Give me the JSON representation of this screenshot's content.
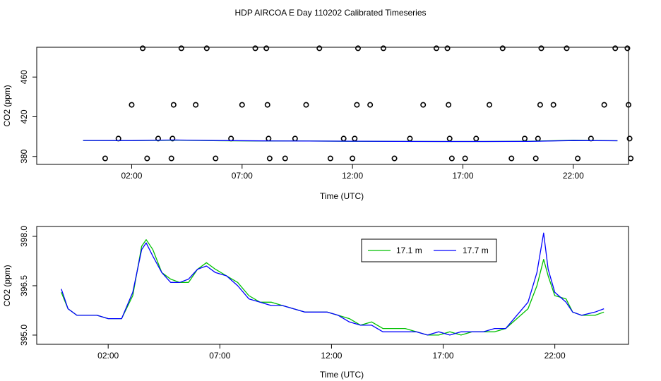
{
  "title": "HDP AIRCOA E  Day 110202  Calibrated Timeseries",
  "colors": {
    "green": "#00c000",
    "blue": "#0000ff",
    "black": "#000000"
  },
  "chart_data": [
    {
      "id": "top",
      "type": "scatter",
      "xlabel": "Time (UTC)",
      "ylabel": "CO2 (ppm)",
      "x_unit": "hours",
      "xlim": [
        -2.3,
        24.5
      ],
      "ylim": [
        372,
        490
      ],
      "x_ticks": [
        {
          "value": 2,
          "label": "02:00"
        },
        {
          "value": 7,
          "label": "07:00"
        },
        {
          "value": 12,
          "label": "12:00"
        },
        {
          "value": 17,
          "label": "17:00"
        },
        {
          "value": 22,
          "label": "22:00"
        }
      ],
      "y_ticks": [
        {
          "value": 380,
          "label": "380"
        },
        {
          "value": 420,
          "label": "420"
        },
        {
          "value": 460,
          "label": "460"
        }
      ],
      "points": [
        [
          0.8,
          378
        ],
        [
          1.4,
          398
        ],
        [
          2.0,
          432
        ],
        [
          2.5,
          489
        ],
        [
          2.7,
          378
        ],
        [
          3.2,
          398
        ],
        [
          3.8,
          378
        ],
        [
          3.85,
          398
        ],
        [
          3.9,
          432
        ],
        [
          4.25,
          489
        ],
        [
          4.9,
          432
        ],
        [
          5.4,
          489
        ],
        [
          5.8,
          378
        ],
        [
          6.5,
          398
        ],
        [
          7.0,
          432
        ],
        [
          7.6,
          489
        ],
        [
          8.1,
          489
        ],
        [
          8.15,
          432
        ],
        [
          8.2,
          398
        ],
        [
          8.25,
          378
        ],
        [
          8.95,
          378
        ],
        [
          9.4,
          398
        ],
        [
          9.9,
          432
        ],
        [
          10.5,
          489
        ],
        [
          11.0,
          378
        ],
        [
          11.6,
          398
        ],
        [
          12.0,
          378
        ],
        [
          12.1,
          398
        ],
        [
          12.2,
          432
        ],
        [
          12.25,
          489
        ],
        [
          12.8,
          432
        ],
        [
          13.4,
          489
        ],
        [
          13.9,
          378
        ],
        [
          14.6,
          398
        ],
        [
          15.2,
          432
        ],
        [
          15.8,
          489
        ],
        [
          16.3,
          489
        ],
        [
          16.35,
          432
        ],
        [
          16.4,
          398
        ],
        [
          16.5,
          378
        ],
        [
          17.1,
          378
        ],
        [
          17.6,
          398
        ],
        [
          18.2,
          432
        ],
        [
          18.8,
          489
        ],
        [
          19.2,
          378
        ],
        [
          19.8,
          398
        ],
        [
          20.3,
          378
        ],
        [
          20.4,
          398
        ],
        [
          20.5,
          432
        ],
        [
          20.55,
          489
        ],
        [
          21.1,
          432
        ],
        [
          21.7,
          489
        ],
        [
          22.2,
          378
        ],
        [
          22.8,
          398
        ],
        [
          23.4,
          432
        ],
        [
          23.9,
          489
        ],
        [
          24.45,
          489
        ],
        [
          24.5,
          432
        ],
        [
          24.55,
          398
        ],
        [
          24.6,
          378
        ]
      ],
      "series": [
        {
          "values": [
            [
              -0.2,
              396.0
            ],
            [
              2,
              395.9
            ],
            [
              4,
              396.4
            ],
            [
              6,
              395.8
            ],
            [
              8,
              395.6
            ],
            [
              10,
              395.5
            ],
            [
              12,
              395.3
            ],
            [
              14,
              395.2
            ],
            [
              16,
              395.1
            ],
            [
              18,
              395.1
            ],
            [
              20,
              395.3
            ],
            [
              22,
              396.3
            ],
            [
              24,
              395.8
            ]
          ]
        },
        {
          "values": [
            [
              -0.2,
              396.1
            ],
            [
              2,
              396.0
            ],
            [
              4,
              396.6
            ],
            [
              6,
              396.0
            ],
            [
              8,
              395.7
            ],
            [
              10,
              395.5
            ],
            [
              12,
              395.4
            ],
            [
              14,
              395.2
            ],
            [
              16,
              395.1
            ],
            [
              18,
              395.1
            ],
            [
              20,
              395.2
            ],
            [
              22,
              396.0
            ],
            [
              24,
              395.8
            ]
          ]
        }
      ]
    },
    {
      "id": "bottom",
      "type": "line",
      "xlabel": "Time (UTC)",
      "ylabel": "CO2 (ppm)",
      "x_unit": "hours",
      "xlim": [
        -1.2,
        25.3
      ],
      "ylim": [
        394.72,
        398.3
      ],
      "x_ticks": [
        {
          "value": 2,
          "label": "02:00"
        },
        {
          "value": 7,
          "label": "07:00"
        },
        {
          "value": 12,
          "label": "12:00"
        },
        {
          "value": 17,
          "label": "17:00"
        },
        {
          "value": 22,
          "label": "22:00"
        }
      ],
      "y_ticks": [
        {
          "value": 395.0,
          "label": "395.0"
        },
        {
          "value": 396.5,
          "label": "396.5"
        },
        {
          "value": 398.0,
          "label": "398.0"
        }
      ],
      "legend": {
        "position": "top-center"
      },
      "series": [
        {
          "name": "17.1 m",
          "color": "#00c000",
          "values": [
            [
              -0.1,
              396.3
            ],
            [
              0.2,
              395.8
            ],
            [
              0.6,
              395.6
            ],
            [
              1.0,
              395.6
            ],
            [
              1.5,
              395.6
            ],
            [
              2.0,
              395.5
            ],
            [
              2.6,
              395.5
            ],
            [
              3.1,
              396.2
            ],
            [
              3.5,
              397.7
            ],
            [
              3.7,
              397.9
            ],
            [
              4.0,
              397.6
            ],
            [
              4.4,
              396.9
            ],
            [
              4.8,
              396.7
            ],
            [
              5.2,
              396.6
            ],
            [
              5.6,
              396.6
            ],
            [
              6.0,
              397.0
            ],
            [
              6.4,
              397.2
            ],
            [
              6.8,
              397.0
            ],
            [
              7.3,
              396.8
            ],
            [
              7.8,
              396.6
            ],
            [
              8.3,
              396.2
            ],
            [
              8.8,
              396.0
            ],
            [
              9.3,
              396.0
            ],
            [
              9.8,
              395.9
            ],
            [
              10.3,
              395.8
            ],
            [
              10.8,
              395.7
            ],
            [
              11.3,
              395.7
            ],
            [
              11.8,
              395.7
            ],
            [
              12.3,
              395.6
            ],
            [
              12.8,
              395.5
            ],
            [
              13.3,
              395.3
            ],
            [
              13.8,
              395.4
            ],
            [
              14.3,
              395.2
            ],
            [
              14.8,
              395.2
            ],
            [
              15.3,
              395.2
            ],
            [
              15.8,
              395.1
            ],
            [
              16.3,
              395.0
            ],
            [
              16.8,
              395.0
            ],
            [
              17.3,
              395.1
            ],
            [
              17.8,
              395.0
            ],
            [
              18.3,
              395.1
            ],
            [
              18.8,
              395.1
            ],
            [
              19.3,
              395.1
            ],
            [
              19.8,
              395.2
            ],
            [
              20.3,
              395.5
            ],
            [
              20.8,
              395.8
            ],
            [
              21.2,
              396.5
            ],
            [
              21.5,
              397.3
            ],
            [
              21.7,
              396.8
            ],
            [
              22.0,
              396.2
            ],
            [
              22.5,
              396.1
            ],
            [
              22.8,
              395.7
            ],
            [
              23.2,
              395.6
            ],
            [
              23.8,
              395.6
            ],
            [
              24.2,
              395.7
            ]
          ]
        },
        {
          "name": "17.7 m",
          "color": "#0000ff",
          "values": [
            [
              -0.1,
              396.4
            ],
            [
              0.2,
              395.8
            ],
            [
              0.6,
              395.6
            ],
            [
              1.0,
              395.6
            ],
            [
              1.5,
              395.6
            ],
            [
              2.0,
              395.5
            ],
            [
              2.6,
              395.5
            ],
            [
              3.1,
              396.3
            ],
            [
              3.5,
              397.6
            ],
            [
              3.7,
              397.8
            ],
            [
              4.0,
              397.4
            ],
            [
              4.4,
              396.9
            ],
            [
              4.8,
              396.6
            ],
            [
              5.2,
              396.6
            ],
            [
              5.6,
              396.7
            ],
            [
              6.0,
              397.0
            ],
            [
              6.4,
              397.1
            ],
            [
              6.8,
              396.9
            ],
            [
              7.3,
              396.8
            ],
            [
              7.8,
              396.5
            ],
            [
              8.3,
              396.1
            ],
            [
              8.8,
              396.0
            ],
            [
              9.3,
              395.9
            ],
            [
              9.8,
              395.9
            ],
            [
              10.3,
              395.8
            ],
            [
              10.8,
              395.7
            ],
            [
              11.3,
              395.7
            ],
            [
              11.8,
              395.7
            ],
            [
              12.3,
              395.6
            ],
            [
              12.8,
              395.4
            ],
            [
              13.3,
              395.3
            ],
            [
              13.8,
              395.3
            ],
            [
              14.3,
              395.1
            ],
            [
              14.8,
              395.1
            ],
            [
              15.3,
              395.1
            ],
            [
              15.8,
              395.1
            ],
            [
              16.3,
              395.0
            ],
            [
              16.8,
              395.1
            ],
            [
              17.3,
              395.0
            ],
            [
              17.8,
              395.1
            ],
            [
              18.3,
              395.1
            ],
            [
              18.8,
              395.1
            ],
            [
              19.3,
              395.2
            ],
            [
              19.8,
              395.2
            ],
            [
              20.3,
              395.6
            ],
            [
              20.8,
              396.0
            ],
            [
              21.2,
              396.9
            ],
            [
              21.5,
              398.1
            ],
            [
              21.7,
              397.0
            ],
            [
              22.0,
              396.3
            ],
            [
              22.5,
              396.0
            ],
            [
              22.8,
              395.7
            ],
            [
              23.2,
              395.6
            ],
            [
              23.8,
              395.7
            ],
            [
              24.2,
              395.8
            ]
          ]
        }
      ]
    }
  ]
}
